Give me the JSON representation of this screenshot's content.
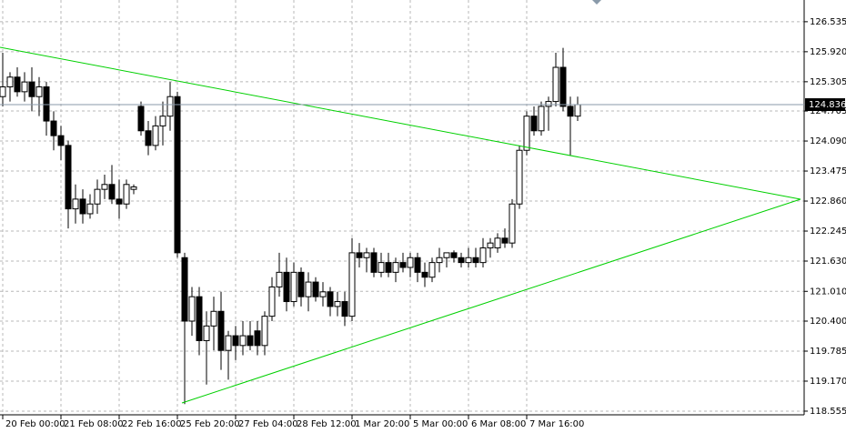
{
  "chart_data": {
    "type": "candlestick",
    "categories": [
      "20 Feb 00:00",
      null,
      null,
      null,
      null,
      null,
      null,
      null,
      "21 Feb 08:00",
      null,
      null,
      null,
      null,
      null,
      null,
      null,
      "22 Feb 16:00",
      null,
      null,
      null,
      null,
      null,
      null,
      null,
      "25 Feb 20:00",
      null,
      null,
      null,
      null,
      null,
      null,
      null,
      "27 Feb 04:00",
      null,
      null,
      null,
      null,
      null,
      null,
      null,
      "28 Feb 12:00",
      null,
      null,
      null,
      null,
      null,
      null,
      null,
      "1 Mar 20:00",
      null,
      null,
      null,
      null,
      null,
      null,
      null,
      "5 Mar 00:00",
      null,
      null,
      null,
      null,
      null,
      null,
      null,
      "6 Mar 08:00",
      null,
      null,
      null,
      null,
      null,
      null,
      null,
      "7 Mar 16:00",
      null,
      null,
      null,
      null,
      null,
      null,
      null
    ],
    "open": [
      125.0,
      125.2,
      125.4,
      125.1,
      125.3,
      125.0,
      125.2,
      124.5,
      124.2,
      124.0,
      122.7,
      122.9,
      122.6,
      122.8,
      123.1,
      123.2,
      122.9,
      122.8,
      123.1,
      124.8,
      124.3,
      124.0,
      124.4,
      124.6,
      125.0,
      121.7,
      120.4,
      120.9,
      120.0,
      120.3,
      120.6,
      119.8,
      120.1,
      119.9,
      120.1,
      120.2,
      119.9,
      120.5,
      121.1,
      121.4,
      120.8,
      121.4,
      120.9,
      121.2,
      120.9,
      121.0,
      120.7,
      120.8,
      120.5,
      121.8,
      121.7,
      121.8,
      121.4,
      121.6,
      121.4,
      121.6,
      121.5,
      121.7,
      121.4,
      121.3,
      121.6,
      121.7,
      121.8,
      121.7,
      121.6,
      121.7,
      121.6,
      121.9,
      121.9,
      122.1,
      122.0,
      122.8,
      123.9,
      124.6,
      124.3,
      124.8,
      124.9,
      125.6,
      124.8,
      124.6
    ],
    "high": [
      125.9,
      125.5,
      125.6,
      125.5,
      125.6,
      125.4,
      125.3,
      124.7,
      124.4,
      124.1,
      123.2,
      123.1,
      123.0,
      123.3,
      123.4,
      123.6,
      123.3,
      123.3,
      123.2,
      124.9,
      124.5,
      124.6,
      124.9,
      125.3,
      125.1,
      121.8,
      121.1,
      121.1,
      120.6,
      120.9,
      121.0,
      120.2,
      120.3,
      120.4,
      120.4,
      120.4,
      120.6,
      121.3,
      121.8,
      121.7,
      121.6,
      121.5,
      121.4,
      121.3,
      121.2,
      121.1,
      121.0,
      121.0,
      122.1,
      122.0,
      121.9,
      121.9,
      121.8,
      121.8,
      121.7,
      121.8,
      121.8,
      121.8,
      121.6,
      121.7,
      121.9,
      121.8,
      121.85,
      121.8,
      121.9,
      121.9,
      122.1,
      122.1,
      122.2,
      122.3,
      122.9,
      124.0,
      124.7,
      124.8,
      124.9,
      125.0,
      125.9,
      126.0,
      125.0,
      125.0
    ],
    "low": [
      124.8,
      124.9,
      125.0,
      124.9,
      124.7,
      124.6,
      124.2,
      123.9,
      123.7,
      122.3,
      122.4,
      122.4,
      122.5,
      122.6,
      122.9,
      122.8,
      122.5,
      122.7,
      123.0,
      124.2,
      123.8,
      123.9,
      124.0,
      124.3,
      121.7,
      118.7,
      120.1,
      119.7,
      119.1,
      119.8,
      119.4,
      119.2,
      119.6,
      119.7,
      119.8,
      119.7,
      119.7,
      120.4,
      120.9,
      120.6,
      120.7,
      120.7,
      120.6,
      120.8,
      120.7,
      120.5,
      120.5,
      120.3,
      120.4,
      121.5,
      121.4,
      121.3,
      121.3,
      121.3,
      121.2,
      121.4,
      121.3,
      121.2,
      121.1,
      121.2,
      121.4,
      121.5,
      121.6,
      121.5,
      121.5,
      121.5,
      121.5,
      121.7,
      121.8,
      121.9,
      121.9,
      122.7,
      123.8,
      124.2,
      124.2,
      124.3,
      124.8,
      124.7,
      123.8,
      124.5
    ],
    "close": [
      125.2,
      125.4,
      125.1,
      125.3,
      125.0,
      125.2,
      124.5,
      124.2,
      124.0,
      122.7,
      122.9,
      122.6,
      122.8,
      123.1,
      123.2,
      122.9,
      122.8,
      123.2,
      123.15,
      124.3,
      124.0,
      124.4,
      124.6,
      125.0,
      121.8,
      120.4,
      120.9,
      120.0,
      120.3,
      120.6,
      119.8,
      120.1,
      119.9,
      120.1,
      119.9,
      119.9,
      120.5,
      121.1,
      121.4,
      120.8,
      121.4,
      120.9,
      121.2,
      120.9,
      121.0,
      120.7,
      120.8,
      120.5,
      121.8,
      121.7,
      121.8,
      121.4,
      121.6,
      121.4,
      121.6,
      121.5,
      121.7,
      121.4,
      121.3,
      121.6,
      121.7,
      121.8,
      121.7,
      121.6,
      121.7,
      121.6,
      121.9,
      122.0,
      122.1,
      122.0,
      122.8,
      123.9,
      124.6,
      124.3,
      124.8,
      124.9,
      125.6,
      124.8,
      124.6,
      124.836
    ],
    "last_price": 124.836,
    "ylim": [
      118.48,
      126.98
    ],
    "yticks": [
      118.555,
      {
        "value": 119.17,
        "label": "119.170"
      },
      119.785,
      {
        "value": 120.4,
        "label": "120.400"
      },
      {
        "value": 121.01,
        "label": "121.010"
      },
      {
        "value": 121.63,
        "label": "121.630"
      },
      122.245,
      {
        "value": 122.86,
        "label": "122.860"
      },
      123.475,
      {
        "value": 124.09,
        "label": "124.090"
      },
      124.705,
      125.305,
      {
        "value": 125.92,
        "label": "125.920"
      },
      126.535
    ],
    "grid": true,
    "up_color": "#ffffff",
    "down_color": "#000000",
    "wick_color": "#000000"
  }
}
